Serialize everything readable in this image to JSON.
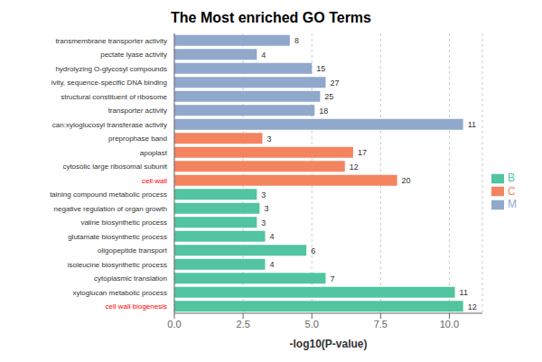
{
  "chart_data": {
    "type": "bar",
    "orientation": "horizontal",
    "stacked": true,
    "title": "The Most enriched GO Terms",
    "x_label": "-log10(P-value)",
    "categories": [
      "transmembrane transporter activity",
      "pectate lyase activity",
      "hydrolyzing O-glycosyl compounds",
      "ivity, sequence-specific DNA binding",
      "structural constituent of ribosome",
      "transporter activity",
      "can:xyloglucosyl transferase activity",
      "preprophase band",
      "apoplast",
      "cytosolic large ribosomal subunit",
      "cell wall",
      "taining compound metabolic process",
      "negative regulation of organ growth",
      "valine biosynthetic process",
      "glutamate biosynthetic process",
      "oligopeptide transport",
      "isoleucine biosynthetic process",
      "cytoplasmic translation",
      "xyloglucan metabolic process",
      "cell wall biogenesis"
    ],
    "series": [
      {
        "name": "B",
        "color": "#52c4a0",
        "values": [
          null,
          null,
          null,
          null,
          null,
          null,
          null,
          null,
          null,
          null,
          null,
          3.0,
          3.1,
          3.0,
          3.3,
          4.8,
          3.3,
          5.5,
          10.2,
          10.5
        ]
      },
      {
        "name": "C",
        "color": "#f4845f",
        "values": [
          null,
          null,
          null,
          null,
          null,
          null,
          null,
          3.2,
          6.5,
          6.2,
          8.1,
          null,
          null,
          null,
          null,
          null,
          null,
          null,
          null,
          null
        ]
      },
      {
        "name": "M",
        "color": "#8fa8cc",
        "values": [
          4.2,
          3.0,
          5.0,
          5.5,
          5.3,
          5.1,
          10.5,
          null,
          null,
          null,
          null,
          null,
          null,
          null,
          null,
          null,
          null,
          null,
          null,
          null
        ]
      }
    ],
    "gene_counts": [
      8,
      4,
      15,
      27,
      25,
      18,
      11,
      3,
      17,
      12,
      20,
      3,
      3,
      3,
      4,
      6,
      4,
      7,
      11,
      12
    ],
    "red_labels": [
      "cell wall",
      "cell wall biogenesis"
    ],
    "xlim": [
      0,
      11.2
    ],
    "xticks": [
      {
        "value": 0,
        "label": "0.0"
      },
      2.5,
      {
        "value": 5,
        "label": "5.0"
      },
      7.5,
      {
        "value": 10,
        "label": "10.0"
      }
    ],
    "grid": true,
    "legend": "right"
  }
}
